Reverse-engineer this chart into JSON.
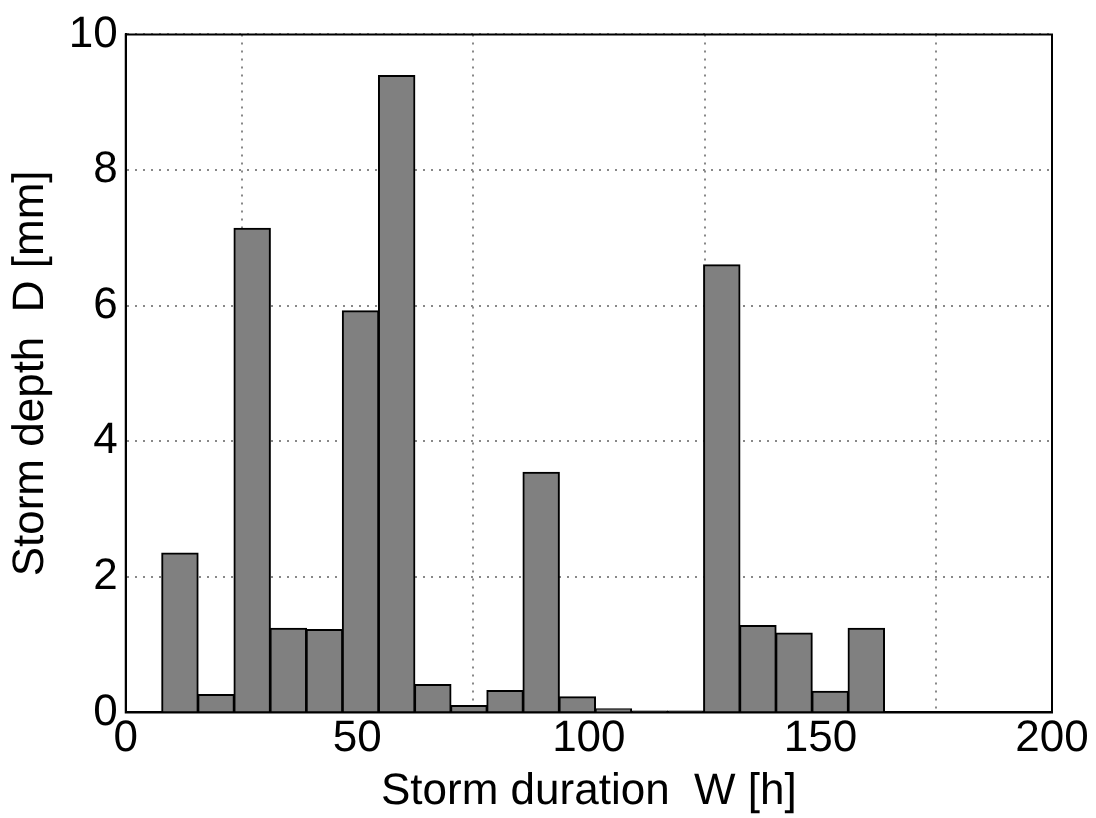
{
  "chart_data": {
    "type": "histogram",
    "xlabel": "Storm duration  W [h]",
    "ylabel": "Storm depth  D [mm]",
    "bins": [
      7.8,
      15.6,
      23.4,
      31.2,
      39,
      46.8,
      54.6,
      62.4,
      70.2,
      78,
      85.8,
      93.6,
      101.4,
      109.2,
      117,
      124.8,
      132.6,
      140.4,
      148.2,
      156,
      163.8
    ],
    "values": [
      2.35,
      0.26,
      7.14,
      1.24,
      1.22,
      5.92,
      9.39,
      0.41,
      0.1,
      0.32,
      3.54,
      0.23,
      0.05,
      0.02,
      0.02,
      6.6,
      1.28,
      1.17,
      0.31,
      1.24
    ],
    "color": "#808080",
    "xlim": [
      0,
      200
    ],
    "xticks": [
      0,
      50,
      100,
      150,
      200
    ],
    "ylim": [
      0,
      10
    ],
    "yticks": [
      0,
      2,
      4,
      6,
      8,
      10
    ],
    "grid": true
  }
}
